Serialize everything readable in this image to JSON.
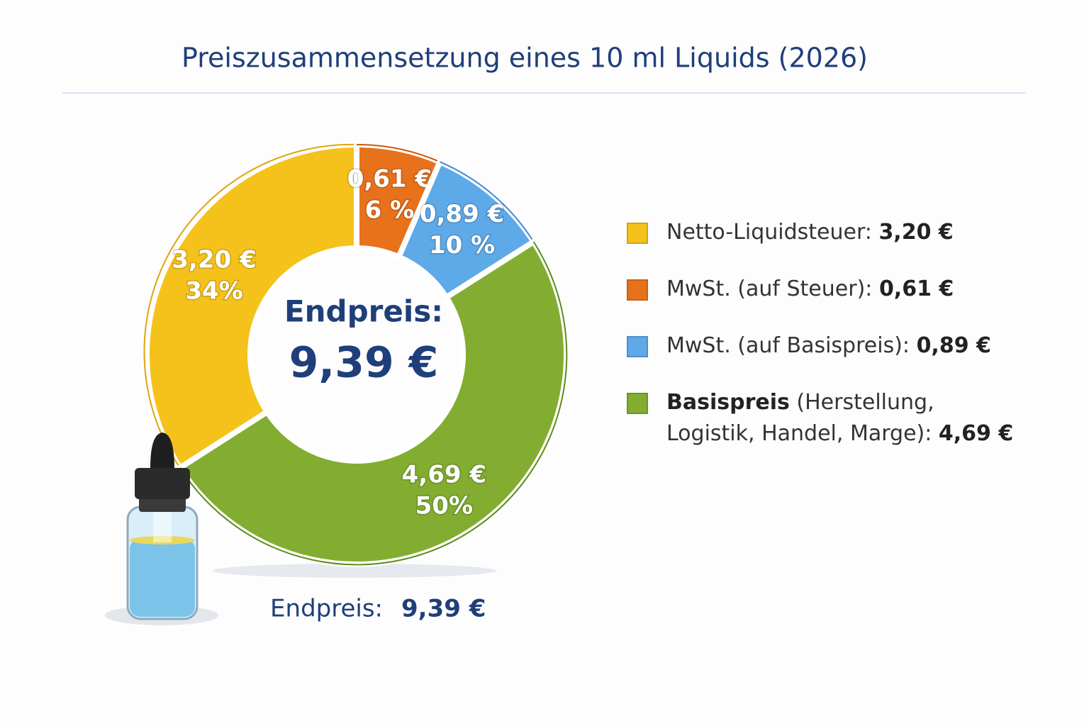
{
  "chart_data": {
    "type": "donut",
    "title": "Preiszusammensetzung eines 10 ml Liquids (2026)",
    "center_label": "Endpreis:",
    "total_label": "9,39 €",
    "footer_label": "Endpreis:",
    "series": [
      {
        "name": "Netto-Liquidsteuer:",
        "color": "#f5c21b",
        "stroke": "#e0a50c"
      },
      {
        "name": "MwSt. (auf Steuer):",
        "color": "#e8711c",
        "stroke": "#c9590d"
      },
      {
        "name": "MwSt. (auf Basispreis):",
        "color": "#5ea9e8",
        "stroke": "#3d8ad0"
      },
      {
        "name": "Basispreis",
        "name_detail": "(Herstellung, Logistik, Handel, Marge):",
        "color": "#82ad30",
        "stroke": "#5f8a1c"
      }
    ],
    "values": [
      3.2,
      0.61,
      0.89,
      4.69
    ],
    "value_labels": [
      "3,20 €",
      "0,61 €",
      "0,89 €",
      "4,69 €"
    ],
    "percent_labels": [
      "34%",
      "6 %",
      "10 %",
      "50%"
    ]
  }
}
